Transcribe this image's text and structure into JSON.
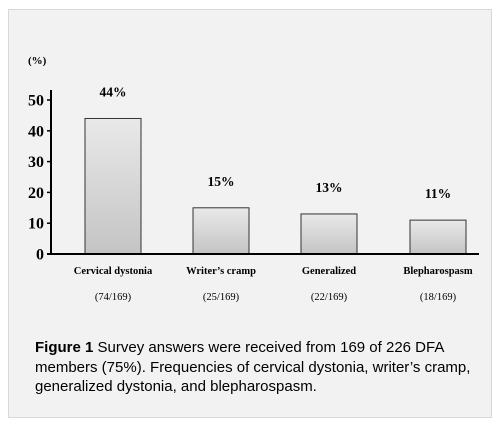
{
  "chart_data": {
    "type": "bar",
    "unit_label": "(%)",
    "categories": [
      "Cervical dystonia",
      "Writer’s cramp",
      "Generalized",
      "Blepharospasm"
    ],
    "values": [
      44,
      15,
      13,
      11
    ],
    "value_labels": [
      "44%",
      "15%",
      "13%",
      "11%"
    ],
    "counts": [
      "(74/169)",
      "(25/169)",
      "(22/169)",
      "(18/169)"
    ],
    "yticks": [
      0,
      10,
      20,
      30,
      40,
      50
    ],
    "ylim": [
      0,
      52
    ],
    "grid": false,
    "colors": {
      "bar_top": "#e9e9e9",
      "bar_bottom": "#c4c4c4",
      "bar_edge": "#333333",
      "axis": "#000000"
    }
  },
  "caption": {
    "label": "Figure 1",
    "text": " Survey answers were received from 169 of 226 DFA members (75%). Frequencies of cervical dystonia, writer’s cramp, generalized dystonia, and blepharospasm."
  }
}
